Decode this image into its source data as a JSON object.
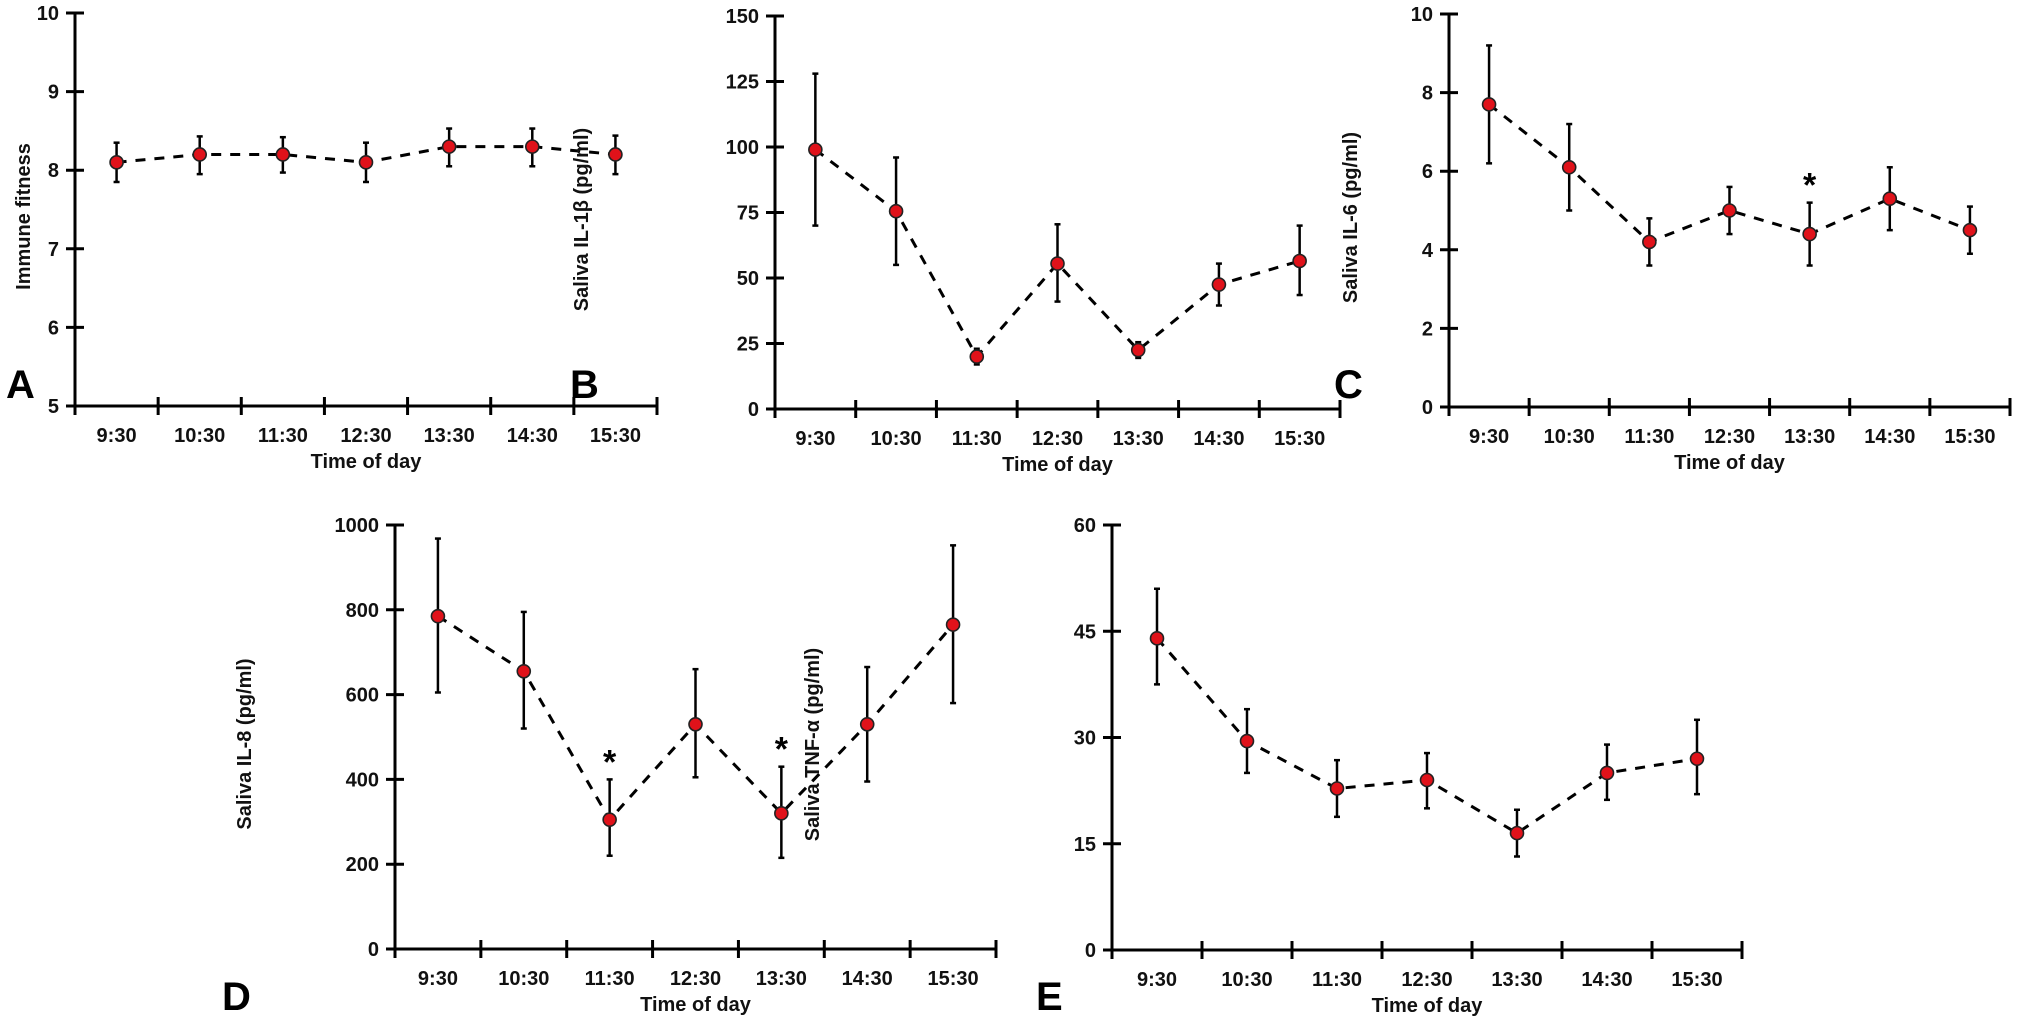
{
  "chart_data": [
    {
      "panel": "A",
      "type": "line",
      "title": "",
      "xlabel": "Time of day",
      "ylabel": "Immune fitness",
      "categories": [
        "9:30",
        "10:30",
        "11:30",
        "12:30",
        "13:30",
        "14:30",
        "15:30"
      ],
      "values": [
        8.1,
        8.2,
        8.2,
        8.1,
        8.3,
        8.3,
        8.2
      ],
      "error_low": [
        7.85,
        7.95,
        7.97,
        7.85,
        8.05,
        8.05,
        7.95
      ],
      "error_high": [
        8.35,
        8.43,
        8.42,
        8.35,
        8.53,
        8.53,
        8.44
      ],
      "significant": [
        false,
        false,
        false,
        false,
        false,
        false,
        false
      ],
      "ylim": [
        5,
        10
      ],
      "yticks": [
        "5",
        "6",
        "7",
        "8",
        "9",
        "10"
      ],
      "ytick_values": [
        5,
        6,
        7,
        8,
        9,
        10
      ],
      "grid": false,
      "legend": "none",
      "marker_color": "#e0121a",
      "line_style": "dashed"
    },
    {
      "panel": "B",
      "type": "line",
      "title": "",
      "xlabel": "Time of day",
      "ylabel": "Saliva IL-1β (pg/ml)",
      "categories": [
        "9:30",
        "10:30",
        "11:30",
        "12:30",
        "13:30",
        "14:30",
        "15:30"
      ],
      "values": [
        99,
        75.5,
        20,
        55.5,
        22.5,
        47.5,
        56.5
      ],
      "error_low": [
        70,
        55,
        17,
        41,
        19.5,
        39.5,
        43.5
      ],
      "error_high": [
        128,
        96,
        23,
        70.5,
        25.5,
        55.5,
        70
      ],
      "significant": [
        false,
        false,
        false,
        false,
        false,
        false,
        false
      ],
      "ylim": [
        0,
        150
      ],
      "yticks": [
        "0",
        "25",
        "50",
        "75",
        "100",
        "125",
        "150"
      ],
      "ytick_values": [
        0,
        25,
        50,
        75,
        100,
        125,
        150
      ],
      "grid": false,
      "legend": "none",
      "marker_color": "#e0121a",
      "line_style": "dashed"
    },
    {
      "panel": "C",
      "type": "line",
      "title": "",
      "xlabel": "Time of day",
      "ylabel": "Saliva IL-6 (pg/ml)",
      "categories": [
        "9:30",
        "10:30",
        "11:30",
        "12:30",
        "13:30",
        "14:30",
        "15:30"
      ],
      "values": [
        7.7,
        6.1,
        4.2,
        5.0,
        4.4,
        5.3,
        4.5
      ],
      "error_low": [
        6.2,
        5.0,
        3.6,
        4.4,
        3.6,
        4.5,
        3.9
      ],
      "error_high": [
        9.2,
        7.2,
        4.8,
        5.6,
        5.2,
        6.1,
        5.1
      ],
      "significant": [
        false,
        false,
        false,
        false,
        true,
        false,
        false
      ],
      "significance_marker": "*",
      "ylim": [
        0,
        10
      ],
      "yticks": [
        "0",
        "2",
        "4",
        "6",
        "8",
        "10"
      ],
      "ytick_values": [
        0,
        2,
        4,
        6,
        8,
        10
      ],
      "grid": false,
      "legend": "none",
      "marker_color": "#e0121a",
      "line_style": "dashed"
    },
    {
      "panel": "D",
      "type": "line",
      "title": "",
      "xlabel": "Time of day",
      "ylabel": "Saliva IL-8 (pg/ml)",
      "categories": [
        "9:30",
        "10:30",
        "11:30",
        "12:30",
        "13:30",
        "14:30",
        "15:30"
      ],
      "values": [
        785,
        655,
        305,
        530,
        320,
        530,
        765
      ],
      "error_low": [
        605,
        520,
        220,
        405,
        215,
        395,
        580
      ],
      "error_high": [
        968,
        795,
        400,
        660,
        430,
        665,
        952
      ],
      "significant": [
        false,
        false,
        true,
        false,
        true,
        false,
        false
      ],
      "significance_marker": "*",
      "ylim": [
        0,
        1000
      ],
      "yticks": [
        "0",
        "200",
        "400",
        "600",
        "800",
        "1000"
      ],
      "ytick_values": [
        0,
        200,
        400,
        600,
        800,
        1000
      ],
      "grid": false,
      "legend": "none",
      "marker_color": "#e0121a",
      "line_style": "dashed"
    },
    {
      "panel": "E",
      "type": "line",
      "title": "",
      "xlabel": "Time of day",
      "ylabel": "Saliva TNF-α (pg/ml)",
      "categories": [
        "9:30",
        "10:30",
        "11:30",
        "12:30",
        "13:30",
        "14:30",
        "15:30"
      ],
      "values": [
        44,
        29.5,
        22.8,
        24,
        16.5,
        25,
        27
      ],
      "error_low": [
        37.5,
        25,
        18.8,
        20,
        13.2,
        21.2,
        22
      ],
      "error_high": [
        51,
        34,
        26.8,
        27.8,
        19.8,
        29,
        32.5
      ],
      "significant": [
        false,
        false,
        false,
        false,
        false,
        false,
        false
      ],
      "ylim": [
        0,
        60
      ],
      "yticks": [
        "0",
        "15",
        "30",
        "45",
        "60"
      ],
      "ytick_values": [
        0,
        15,
        30,
        45,
        60
      ],
      "grid": false,
      "legend": "none",
      "marker_color": "#e0121a",
      "line_style": "dashed"
    }
  ]
}
